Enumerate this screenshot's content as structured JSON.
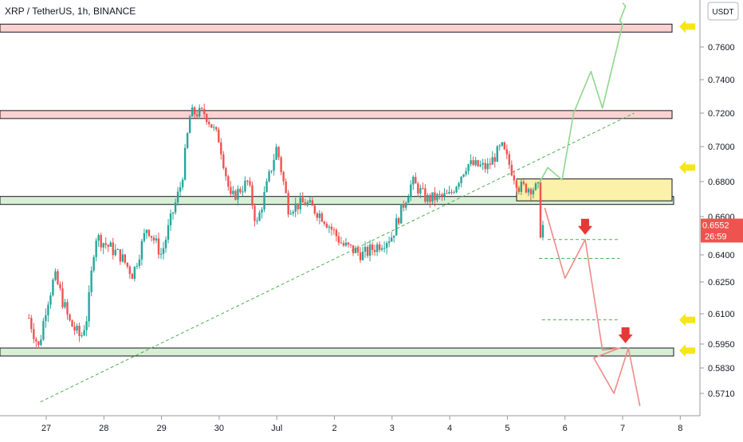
{
  "header": {
    "title": "XRP / TetherUS, 1h, BINANCE"
  },
  "axis": {
    "currency": "USDT"
  },
  "price_tag": {
    "price": "0.6552",
    "countdown": "26:59"
  },
  "colors": {
    "up": "#26a69a",
    "down": "#ef5350",
    "resistance_fill": "#fbd2d0",
    "support_fill": "#d8efd5",
    "entry_fill": "#fbf1a9",
    "trend": "#4caf50",
    "bull_path": "#8fd68b",
    "bear_path": "#f08a85",
    "arrow_yellow": "#f5e61a",
    "arrow_red": "#e53935"
  },
  "chart_data": {
    "type": "candlestick",
    "symbol": "XRP / TetherUS",
    "timeframe": "1h",
    "exchange": "BINANCE",
    "x_ticks": [
      "27",
      "28",
      "29",
      "30",
      "Jul",
      "2",
      "3",
      "4",
      "5",
      "6",
      "7",
      "8"
    ],
    "y_ticks": [
      "0.7600",
      "0.7400",
      "0.7200",
      "0.7000",
      "0.6800",
      "0.6600",
      "0.6400",
      "0.6250",
      "0.6100",
      "0.5950",
      "0.5830",
      "0.5710"
    ],
    "ylim": [
      0.565,
      0.78
    ],
    "grid": false,
    "last_price": 0.6552,
    "anchors": [
      {
        "day": 26.7,
        "price": 0.608
      },
      {
        "day": 26.87,
        "price": 0.593
      },
      {
        "day": 27.0,
        "price": 0.614
      },
      {
        "day": 27.15,
        "price": 0.628
      },
      {
        "day": 27.4,
        "price": 0.606
      },
      {
        "day": 27.6,
        "price": 0.598
      },
      {
        "day": 27.72,
        "price": 0.61
      },
      {
        "day": 27.85,
        "price": 0.65
      },
      {
        "day": 28.3,
        "price": 0.639
      },
      {
        "day": 28.5,
        "price": 0.629
      },
      {
        "day": 28.75,
        "price": 0.655
      },
      {
        "day": 29.0,
        "price": 0.64
      },
      {
        "day": 29.35,
        "price": 0.68
      },
      {
        "day": 29.5,
        "price": 0.72
      },
      {
        "day": 29.75,
        "price": 0.72
      },
      {
        "day": 30.0,
        "price": 0.704
      },
      {
        "day": 30.2,
        "price": 0.67
      },
      {
        "day": 30.5,
        "price": 0.68
      },
      {
        "day": 30.65,
        "price": 0.655
      },
      {
        "day": 31.0,
        "price": 0.7
      },
      {
        "day": 31.2,
        "price": 0.665
      },
      {
        "day": 31.5,
        "price": 0.668
      },
      {
        "day": 31.8,
        "price": 0.66
      },
      {
        "day": 32.15,
        "price": 0.645
      },
      {
        "day": 32.5,
        "price": 0.64
      },
      {
        "day": 33.0,
        "price": 0.65
      },
      {
        "day": 33.35,
        "price": 0.68
      },
      {
        "day": 33.6,
        "price": 0.67
      },
      {
        "day": 34.0,
        "price": 0.672
      },
      {
        "day": 34.3,
        "price": 0.69
      },
      {
        "day": 34.65,
        "price": 0.688
      },
      {
        "day": 34.9,
        "price": 0.7
      },
      {
        "day": 35.2,
        "price": 0.677
      },
      {
        "day": 35.55,
        "price": 0.676
      },
      {
        "day": 35.57,
        "price": 0.652
      },
      {
        "day": 35.62,
        "price": 0.6552
      }
    ],
    "horizontal_zones": [
      {
        "kind": "resistance",
        "from": 0.771,
        "to": 0.774
      },
      {
        "kind": "resistance",
        "from": 0.719,
        "to": 0.7215
      },
      {
        "kind": "support",
        "from": 0.669,
        "to": 0.6715
      },
      {
        "kind": "support",
        "from": 0.5905,
        "to": 0.593
      },
      {
        "kind": "entry",
        "from": 0.669,
        "to": 0.6815
      }
    ],
    "trendline": {
      "from": {
        "day": 26.9,
        "price": 0.567
      },
      "to": {
        "day": 37.2,
        "price": 0.72
      }
    },
    "dashed_levels": [
      {
        "price": 0.648,
        "from_day": 35.7,
        "to_day": 36.95
      },
      {
        "price": 0.638,
        "from_day": 35.55,
        "to_day": 36.95
      },
      {
        "price": 0.607,
        "from_day": 35.6,
        "to_day": 36.95
      }
    ],
    "bull_projection": [
      {
        "day": 35.55,
        "price": 0.679
      },
      {
        "day": 35.7,
        "price": 0.688
      },
      {
        "day": 35.95,
        "price": 0.681
      },
      {
        "day": 36.15,
        "price": 0.72
      },
      {
        "day": 36.45,
        "price": 0.745
      },
      {
        "day": 36.65,
        "price": 0.723
      },
      {
        "day": 37.0,
        "price": 0.774
      },
      {
        "day": 36.95,
        "price": 0.776
      },
      {
        "day": 37.05,
        "price": 0.785
      },
      {
        "day": 37.0,
        "price": 0.787
      }
    ],
    "bear_projection": [
      {
        "day": 35.65,
        "price": 0.665
      },
      {
        "day": 36.0,
        "price": 0.627
      },
      {
        "day": 36.35,
        "price": 0.648
      },
      {
        "day": 36.65,
        "price": 0.592
      },
      {
        "day": 36.95,
        "price": 0.593
      },
      {
        "day": 36.5,
        "price": 0.588
      },
      {
        "day": 36.85,
        "price": 0.571
      },
      {
        "day": 37.1,
        "price": 0.593
      },
      {
        "day": 37.3,
        "price": 0.565
      }
    ],
    "annotations": [
      {
        "kind": "yellow-arrow",
        "price": 0.7725
      },
      {
        "kind": "yellow-arrow",
        "price": 0.688
      },
      {
        "kind": "yellow-arrow",
        "price": 0.607
      },
      {
        "kind": "yellow-arrow",
        "price": 0.5917
      },
      {
        "kind": "red-arrow-down",
        "day": 36.35,
        "price": 0.648
      },
      {
        "kind": "red-arrow-down",
        "day": 37.05,
        "price": 0.593
      }
    ]
  }
}
